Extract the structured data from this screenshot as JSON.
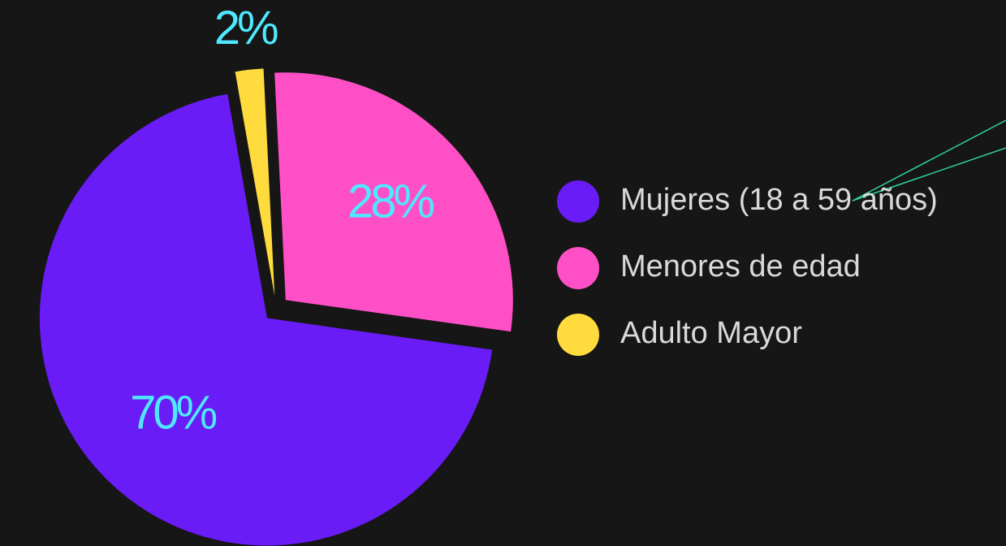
{
  "chart_data": {
    "type": "pie",
    "categories": [
      "Mujeres (18 a 59 años)",
      "Menores de edad",
      "Adulto Mayor"
    ],
    "values": [
      70,
      28,
      2
    ],
    "value_labels": [
      "70%",
      "28%",
      "2%"
    ],
    "colors": [
      "#6a1cf6",
      "#ff4fc6",
      "#ffdb3d"
    ],
    "legend": "right"
  }
}
